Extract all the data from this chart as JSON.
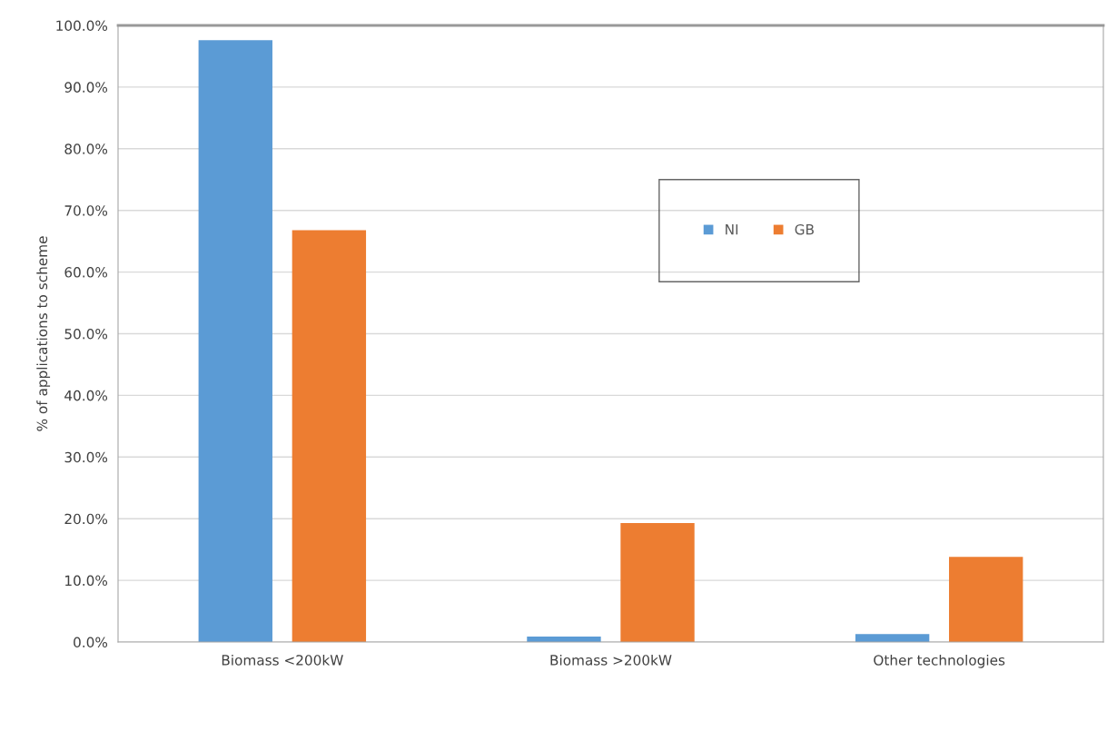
{
  "chart_data": {
    "type": "bar",
    "ylabel": "% of applications to scheme",
    "categories": [
      "Biomass <200kW",
      "Biomass >200kW",
      "Other technologies"
    ],
    "series": [
      {
        "name": "NI",
        "color": "#5b9bd5",
        "values": [
          97.6,
          0.9,
          1.3
        ]
      },
      {
        "name": "GB",
        "color": "#ed7d31",
        "values": [
          66.8,
          19.3,
          13.8
        ]
      }
    ],
    "ylim": [
      0,
      100
    ],
    "yticks": [
      {
        "value": 0,
        "label": "0.0%"
      },
      {
        "value": 10,
        "label": "10.0%"
      },
      {
        "value": 20,
        "label": "20.0%"
      },
      {
        "value": 30,
        "label": "30.0%"
      },
      {
        "value": 40,
        "label": "40.0%"
      },
      {
        "value": 50,
        "label": "50.0%"
      },
      {
        "value": 60,
        "label": "60.0%"
      },
      {
        "value": 70,
        "label": "70.0%"
      },
      {
        "value": 80,
        "label": "80.0%"
      },
      {
        "value": 90,
        "label": "90.0%"
      },
      {
        "value": 100,
        "label": "100.0%"
      }
    ],
    "grid": "y",
    "legend": "top right"
  }
}
